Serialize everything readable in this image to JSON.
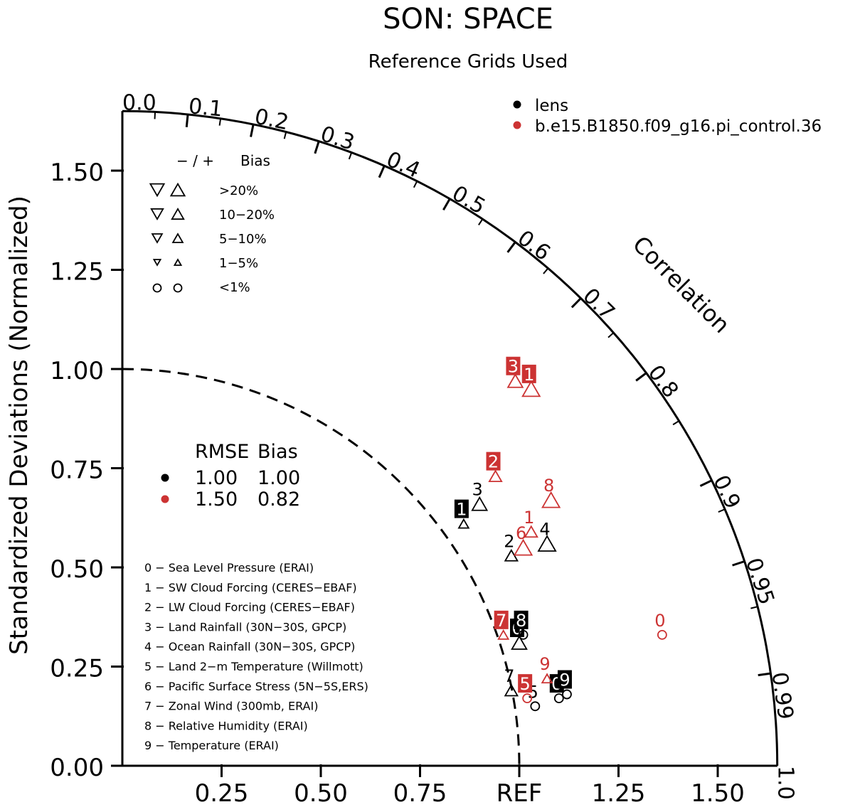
{
  "chart_data": {
    "type": "scatter",
    "subtype": "taylor-diagram",
    "title": "SON: SPACE",
    "subtitle": "Reference Grids Used",
    "ylabel": "Standardized Deviations (Normalized)",
    "arc_label": "Correlation",
    "std_range": [
      0,
      1.65
    ],
    "y_ticks": [
      "0.00",
      "0.25",
      "0.50",
      "0.75",
      "1.00",
      "1.25",
      "1.50"
    ],
    "x_ticks": [
      "0.25",
      "0.50",
      "0.75",
      "REF",
      "1.25",
      "1.50"
    ],
    "correlation_ticks": [
      "0.0",
      "0.1",
      "0.2",
      "0.3",
      "0.4",
      "0.5",
      "0.6",
      "0.7",
      "0.8",
      "0.9",
      "0.95",
      "0.99",
      "1.0"
    ],
    "reference_arc_std": 1.0,
    "cases": [
      {
        "name": "lens",
        "color": "#000000"
      },
      {
        "name": "b.e15.B1850.f09_g16.pi_control.36",
        "color": "#cc3333"
      }
    ],
    "bias_legend": {
      "header": [
        "− / +",
        "Bias"
      ],
      "rows": [
        "&gt;20%",
        "10−20%",
        "5−10%",
        "1−5%",
        "&lt;1%"
      ]
    },
    "summary": {
      "header": [
        "RMSE",
        "Bias"
      ],
      "rows": [
        {
          "rmse": "1.00",
          "bias": "1.00",
          "color": "#000000"
        },
        {
          "rmse": "1.50",
          "bias": "0.82",
          "color": "#cc3333"
        }
      ]
    },
    "variables": [
      "0 − Sea Level Pressure (ERAI)",
      "1 − SW Cloud Forcing (CERES−EBAF)",
      "2 − LW Cloud Forcing (CERES−EBAF)",
      "3 − Land Rainfall (30N−30S, GPCP)",
      "4 − Ocean Rainfall (30N−30S, GPCP)",
      "5 − Land 2−m Temperature (Willmott)",
      "6 − Pacific Surface Stress (5N−5S,ERS)",
      "7 − Zonal Wind (300mb, ERAI)",
      "8 − Relative Humidity (ERAI)",
      "9 − Temperature (ERAI)"
    ],
    "points": [
      {
        "case": 0,
        "label": "0",
        "x": 1.1,
        "y": 0.17,
        "bias_marker": "circle",
        "bias_size": 1,
        "boxed": true
      },
      {
        "case": 0,
        "label": "1",
        "x": 0.86,
        "y": 0.61,
        "bias_marker": "up",
        "bias_size": 2,
        "boxed": true
      },
      {
        "case": 0,
        "label": "2",
        "x": 0.98,
        "y": 0.53,
        "bias_marker": "up",
        "bias_size": 3,
        "boxed": false
      },
      {
        "case": 0,
        "label": "3",
        "x": 0.9,
        "y": 0.66,
        "bias_marker": "up",
        "bias_size": 4,
        "boxed": false
      },
      {
        "case": 0,
        "label": "4",
        "x": 1.07,
        "y": 0.56,
        "bias_marker": "up",
        "bias_size": 5,
        "boxed": false
      },
      {
        "case": 0,
        "label": "5",
        "x": 1.04,
        "y": 0.15,
        "bias_marker": "circle",
        "bias_size": 1,
        "boxed": false
      },
      {
        "case": 0,
        "label": "6",
        "x": 1.0,
        "y": 0.31,
        "bias_marker": "up",
        "bias_size": 4,
        "boxed": true
      },
      {
        "case": 0,
        "label": "7",
        "x": 0.98,
        "y": 0.19,
        "bias_marker": "up",
        "bias_size": 3,
        "boxed": false
      },
      {
        "case": 0,
        "label": "8",
        "x": 1.01,
        "y": 0.33,
        "bias_marker": "circle",
        "bias_size": 1,
        "boxed": true
      },
      {
        "case": 0,
        "label": "9",
        "x": 1.12,
        "y": 0.18,
        "bias_marker": "circle",
        "bias_size": 1,
        "boxed": true
      },
      {
        "case": 1,
        "label": "0",
        "x": 1.36,
        "y": 0.33,
        "bias_marker": "circle",
        "bias_size": 1,
        "boxed": false
      },
      {
        "case": 1,
        "label": "1",
        "x": 1.03,
        "y": 0.95,
        "bias_marker": "up",
        "bias_size": 5,
        "boxed": true
      },
      {
        "case": 1,
        "label": "1",
        "x": 1.03,
        "y": 0.59,
        "bias_marker": "up",
        "bias_size": 3,
        "boxed": false
      },
      {
        "case": 1,
        "label": "2",
        "x": 0.94,
        "y": 0.73,
        "bias_marker": "up",
        "bias_size": 3,
        "boxed": true
      },
      {
        "case": 1,
        "label": "3",
        "x": 0.99,
        "y": 0.97,
        "bias_marker": "up",
        "bias_size": 4,
        "boxed": true
      },
      {
        "case": 1,
        "label": "5",
        "x": 1.02,
        "y": 0.17,
        "bias_marker": "circle",
        "bias_size": 1,
        "boxed": true
      },
      {
        "case": 1,
        "label": "6",
        "x": 1.01,
        "y": 0.55,
        "bias_marker": "up",
        "bias_size": 5,
        "boxed": false
      },
      {
        "case": 1,
        "label": "7",
        "x": 0.96,
        "y": 0.33,
        "bias_marker": "up",
        "bias_size": 2,
        "boxed": true
      },
      {
        "case": 1,
        "label": "8",
        "x": 1.08,
        "y": 0.67,
        "bias_marker": "up",
        "bias_size": 5,
        "boxed": false
      },
      {
        "case": 1,
        "label": "9",
        "x": 1.07,
        "y": 0.22,
        "bias_marker": "up",
        "bias_size": 2,
        "boxed": false
      }
    ]
  }
}
